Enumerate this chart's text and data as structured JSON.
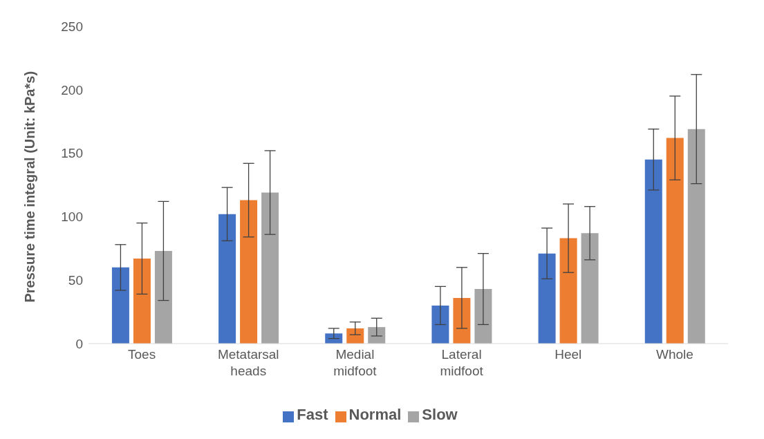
{
  "chart_data": {
    "type": "bar",
    "ylabel": "Pressure time integral (Unit: kPa*s)",
    "categories": [
      "Toes",
      "Metatarsal heads",
      "Medial midfoot",
      "Lateral midfoot",
      "Heel",
      "Whole"
    ],
    "series": [
      {
        "name": "Fast",
        "color": "#4472c4",
        "values": [
          60,
          102,
          8,
          30,
          71,
          145
        ],
        "errors": [
          18,
          21,
          4,
          15,
          20,
          24
        ]
      },
      {
        "name": "Normal",
        "color": "#ed7d31",
        "values": [
          67,
          113,
          12,
          36,
          83,
          162
        ],
        "errors": [
          28,
          29,
          5,
          24,
          27,
          33
        ]
      },
      {
        "name": "Slow",
        "color": "#a5a5a5",
        "values": [
          73,
          119,
          13,
          43,
          87,
          169
        ],
        "errors": [
          39,
          33,
          7,
          28,
          21,
          43
        ]
      }
    ],
    "ylim": [
      0,
      250
    ],
    "yticks": [
      0,
      50,
      100,
      150,
      200,
      250
    ],
    "grid": false,
    "legend": "bottom"
  }
}
